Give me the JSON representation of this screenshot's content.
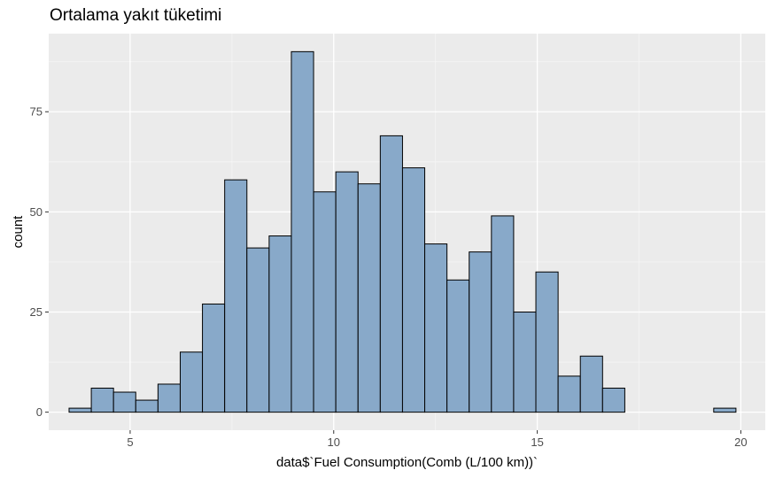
{
  "chart_data": {
    "type": "bar",
    "title": "Ortalama yakıt tüketimi",
    "xlabel": "data$`Fuel Consumption(Comb (L/100 km))`",
    "ylabel": "count",
    "xlim": [
      3.0,
      20.6
    ],
    "ylim": [
      -4.5,
      94.5
    ],
    "xticks": [
      5,
      10,
      15,
      20
    ],
    "yticks": [
      0,
      25,
      50,
      75
    ],
    "xtick_labels": [
      "5",
      "10",
      "15",
      "20"
    ],
    "ytick_labels": [
      "0",
      "25",
      "50",
      "75"
    ],
    "bin_width": 0.546,
    "bin_start": 3.5,
    "counts": [
      1,
      6,
      5,
      3,
      7,
      15,
      27,
      58,
      41,
      44,
      90,
      55,
      60,
      57,
      69,
      61,
      42,
      33,
      40,
      49,
      25,
      35,
      9,
      14,
      6,
      0,
      0,
      0,
      0,
      1
    ],
    "grid": true,
    "legend": "none",
    "colors": {
      "bar_fill": "#88a9c9",
      "bar_stroke": "#000000",
      "panel_bg": "#ebebeb",
      "grid_major": "#ffffff",
      "grid_minor": "#f5f5f5"
    }
  }
}
